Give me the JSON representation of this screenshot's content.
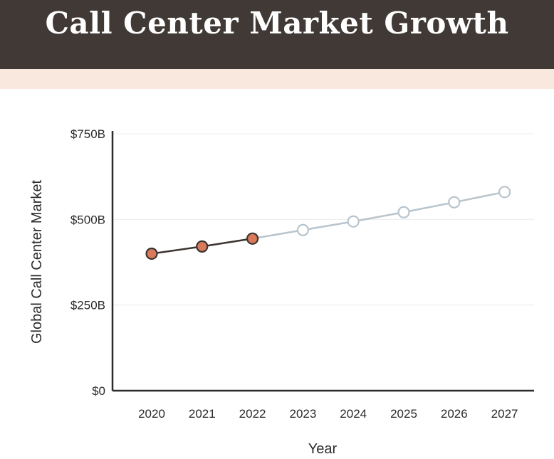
{
  "chart_data": {
    "type": "line",
    "title": "Call Center Market Growth",
    "xlabel": "Year",
    "ylabel": "Global Call Center Market",
    "ylim": [
      0,
      750
    ],
    "yticks": [
      {
        "value": 0,
        "label": "$0"
      },
      {
        "value": 250,
        "label": "$250B"
      },
      {
        "value": 500,
        "label": "$500B"
      },
      {
        "value": 750,
        "label": "$750B"
      }
    ],
    "x": [
      "2020",
      "2021",
      "2022",
      "2023",
      "2024",
      "2025",
      "2026",
      "2027"
    ],
    "grid": true,
    "series": [
      {
        "x": [
          "2020",
          "2021",
          "2022"
        ],
        "values": [
          400,
          421,
          444
        ],
        "line_color": "#3a3431",
        "marker_fill": "#d97b5a",
        "marker_stroke": "#3a3431"
      },
      {
        "x": [
          "2022",
          "2023",
          "2024",
          "2025",
          "2026",
          "2027"
        ],
        "values": [
          444,
          469,
          494,
          521,
          550,
          580
        ],
        "line_color": "#b9c4cc",
        "marker_fill": "#ffffff",
        "marker_stroke": "#b9c4cc"
      }
    ]
  },
  "colors": {
    "title_bar": "#403936",
    "band": "#f8e8dd",
    "axis": "#2b2b2b",
    "grid": "#ececec"
  }
}
